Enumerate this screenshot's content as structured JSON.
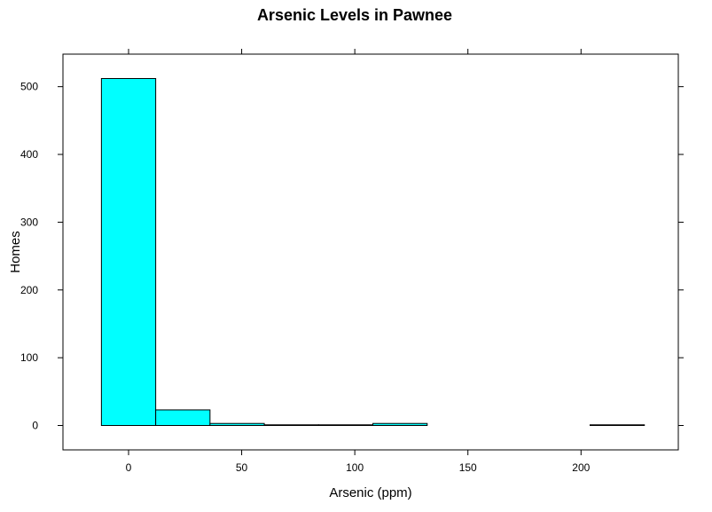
{
  "chart_data": {
    "type": "bar",
    "title": "Arsenic Levels in Pawnee",
    "xlabel": "Arsenic (ppm)",
    "ylabel": "Homes",
    "bins": [
      {
        "x0": -12,
        "x1": 12,
        "count": 512
      },
      {
        "x0": 12,
        "x1": 36,
        "count": 23
      },
      {
        "x0": 36,
        "x1": 60,
        "count": 3
      },
      {
        "x0": 60,
        "x1": 84,
        "count": 1
      },
      {
        "x0": 84,
        "x1": 108,
        "count": 1
      },
      {
        "x0": 108,
        "x1": 132,
        "count": 3
      },
      {
        "x0": 132,
        "x1": 156,
        "count": 0
      },
      {
        "x0": 156,
        "x1": 180,
        "count": 0
      },
      {
        "x0": 180,
        "x1": 204,
        "count": 0
      },
      {
        "x0": 204,
        "x1": 228,
        "count": 1
      }
    ],
    "xticks": [
      0,
      50,
      100,
      150,
      200
    ],
    "yticks": [
      0,
      100,
      200,
      300,
      400,
      500
    ],
    "xlim": [
      -29,
      243
    ],
    "ylim": [
      -36,
      548
    ],
    "grid": false,
    "legend": "none",
    "fill_color": "#00ffff",
    "stroke_color": "#000000"
  }
}
